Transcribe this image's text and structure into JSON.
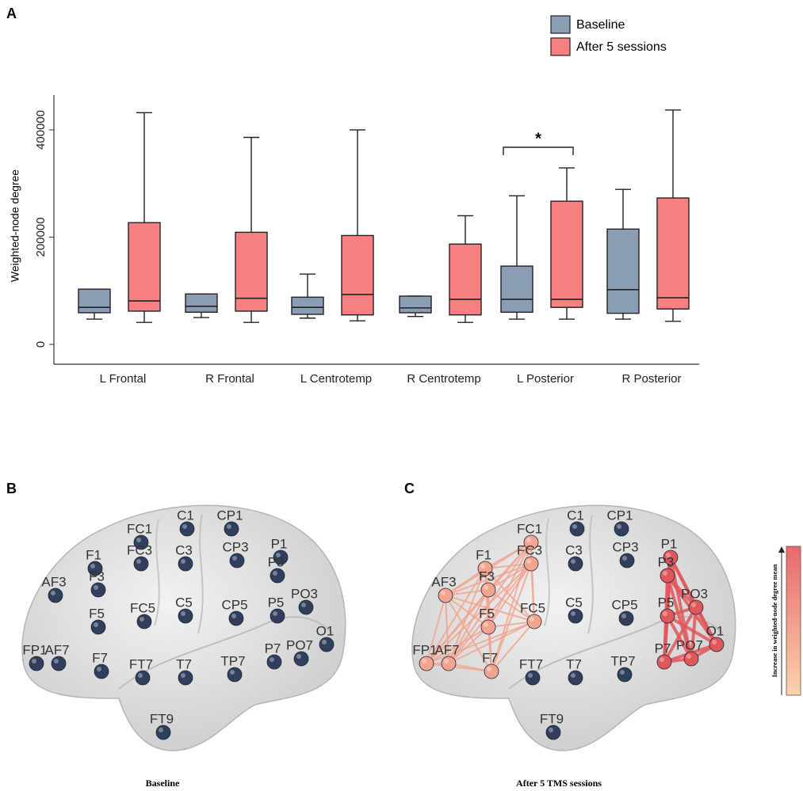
{
  "panel_labels": [
    "A",
    "B",
    "C"
  ],
  "chart_data": {
    "type": "box",
    "y_label": "Weighted-node degree",
    "categories": [
      "L Frontal",
      "R Frontal",
      "L Centrotemp",
      "R Centrotemp",
      "L Posterior",
      "R Posterior"
    ],
    "series": [
      {
        "name": "Baseline",
        "color": "#8a9db5",
        "values": [
          {
            "min": 47000,
            "q1": 59000,
            "median": 69000,
            "q3": 103000,
            "max": 103000
          },
          {
            "min": 50000,
            "q1": 60000,
            "median": 71000,
            "q3": 94000,
            "max": 94000
          },
          {
            "min": 49000,
            "q1": 56000,
            "median": 69000,
            "q3": 88000,
            "max": 131000
          },
          {
            "min": 52000,
            "q1": 59000,
            "median": 68000,
            "q3": 90000,
            "max": 90000
          },
          {
            "min": 47000,
            "q1": 60000,
            "median": 84000,
            "q3": 146000,
            "max": 277000
          },
          {
            "min": 47000,
            "q1": 58000,
            "median": 102000,
            "q3": 215000,
            "max": 289000
          }
        ]
      },
      {
        "name": "After 5 sessions",
        "color": "#f98080",
        "values": [
          {
            "min": 41000,
            "q1": 62000,
            "median": 81000,
            "q3": 227000,
            "max": 432000
          },
          {
            "min": 41000,
            "q1": 62000,
            "median": 86000,
            "q3": 209000,
            "max": 386000
          },
          {
            "min": 44000,
            "q1": 55000,
            "median": 93000,
            "q3": 203000,
            "max": 400000
          },
          {
            "min": 41000,
            "q1": 55000,
            "median": 84000,
            "q3": 187000,
            "max": 240000
          },
          {
            "min": 47000,
            "q1": 69000,
            "median": 84000,
            "q3": 267000,
            "max": 329000
          },
          {
            "min": 43000,
            "q1": 66000,
            "median": 87000,
            "q3": 273000,
            "max": 437000
          }
        ]
      }
    ],
    "ylim": [
      -37000,
      465000
    ],
    "yticks": [
      0,
      200000,
      400000
    ],
    "legend": "top-right",
    "annotations": [
      {
        "text": "*"
      }
    ]
  },
  "panel_b": {
    "caption": "Baseline",
    "node_color": "#2f3f5c",
    "electrodes": [
      "FC1",
      "C1",
      "CP1",
      "F1",
      "FC3",
      "C3",
      "CP3",
      "P1",
      "F3",
      "P3",
      "AF3",
      "F5",
      "FC5",
      "C5",
      "CP5",
      "P5",
      "PO3",
      "O1",
      "FP1",
      "AF7",
      "F7",
      "FT7",
      "T7",
      "TP7",
      "P7",
      "PO7",
      "FT9"
    ]
  },
  "panel_c": {
    "caption": "After 5 TMS sessions",
    "colorbar_label": "Increase in weighted-node degree mean",
    "electrodes": [
      {
        "label": "FC1",
        "color": "#f2a48f"
      },
      {
        "label": "C1",
        "color": "#2f3f5c"
      },
      {
        "label": "CP1",
        "color": "#2f3f5c"
      },
      {
        "label": "F1",
        "color": "#f2a48f"
      },
      {
        "label": "FC3",
        "color": "#f2a48f"
      },
      {
        "label": "C3",
        "color": "#2f3f5c"
      },
      {
        "label": "CP3",
        "color": "#2f3f5c"
      },
      {
        "label": "P1",
        "color": "#e0575a"
      },
      {
        "label": "F3",
        "color": "#f2a48f"
      },
      {
        "label": "P3",
        "color": "#e0575a"
      },
      {
        "label": "AF3",
        "color": "#f2a48f"
      },
      {
        "label": "F5",
        "color": "#f2a48f"
      },
      {
        "label": "FC5",
        "color": "#f2a48f"
      },
      {
        "label": "C5",
        "color": "#2f3f5c"
      },
      {
        "label": "CP5",
        "color": "#2f3f5c"
      },
      {
        "label": "P5",
        "color": "#e0575a"
      },
      {
        "label": "PO3",
        "color": "#e0575a"
      },
      {
        "label": "O1",
        "color": "#e0575a"
      },
      {
        "label": "FP1",
        "color": "#f2a48f"
      },
      {
        "label": "AF7",
        "color": "#f2a48f"
      },
      {
        "label": "F7",
        "color": "#f2a48f"
      },
      {
        "label": "FT7",
        "color": "#2f3f5c"
      },
      {
        "label": "T7",
        "color": "#2f3f5c"
      },
      {
        "label": "TP7",
        "color": "#2f3f5c"
      },
      {
        "label": "P7",
        "color": "#e0575a"
      },
      {
        "label": "PO7",
        "color": "#e0575a"
      },
      {
        "label": "FT9",
        "color": "#2f3f5c"
      }
    ]
  }
}
